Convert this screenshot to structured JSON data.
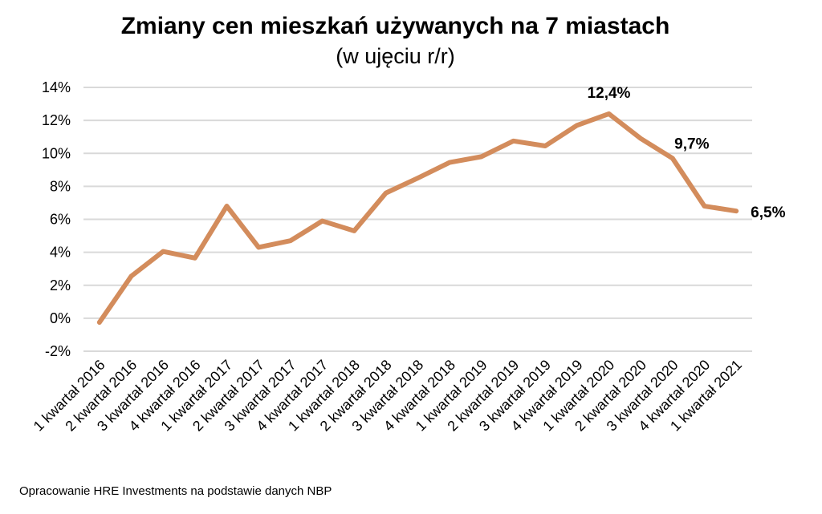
{
  "chart_data": {
    "type": "line",
    "title": "Zmiany cen mieszkań używanych na 7 miastach",
    "subtitle": "(w ujęciu r/r)",
    "xlabel": "",
    "ylabel": "",
    "ylim": [
      -2,
      14
    ],
    "yticks": [
      -2,
      0,
      2,
      4,
      6,
      8,
      10,
      12,
      14
    ],
    "ytick_labels": [
      "-2%",
      "0%",
      "2%",
      "4%",
      "6%",
      "8%",
      "10%",
      "12%",
      "14%"
    ],
    "grid": true,
    "categories": [
      "1 kwartał 2016",
      "2 kwartał 2016",
      "3 kwartał 2016",
      "4 kwartał 2016",
      "1 kwartał 2017",
      "2 kwartał 2017",
      "3 kwartał 2017",
      "4 kwartał 2017",
      "1 kwartał 2018",
      "2 kwartał 2018",
      "3 kwartał 2018",
      "4 kwartał 2018",
      "1 kwartał 2019",
      "2 kwartał 2019",
      "3 kwartał 2019",
      "4 kwartał 2019",
      "1 kwartał 2020",
      "2 kwartał 2020",
      "3 kwartał 2020",
      "4 kwartał 2020",
      "1 kwartał 2021"
    ],
    "series": [
      {
        "name": "Zmiana cen r/r",
        "color": "#d38c5c",
        "values": [
          -0.25,
          2.55,
          4.05,
          3.65,
          6.8,
          4.3,
          4.7,
          5.9,
          5.3,
          7.6,
          8.5,
          9.45,
          9.8,
          10.75,
          10.45,
          11.7,
          12.4,
          10.9,
          9.7,
          6.8,
          6.5
        ]
      }
    ],
    "annotations": [
      {
        "index": 16,
        "text": "12,4%"
      },
      {
        "index": 18,
        "text": "9,7%"
      },
      {
        "index": 20,
        "text": "6,5%"
      }
    ]
  },
  "source": "Opracowanie HRE Investments na podstawie danych NBP"
}
